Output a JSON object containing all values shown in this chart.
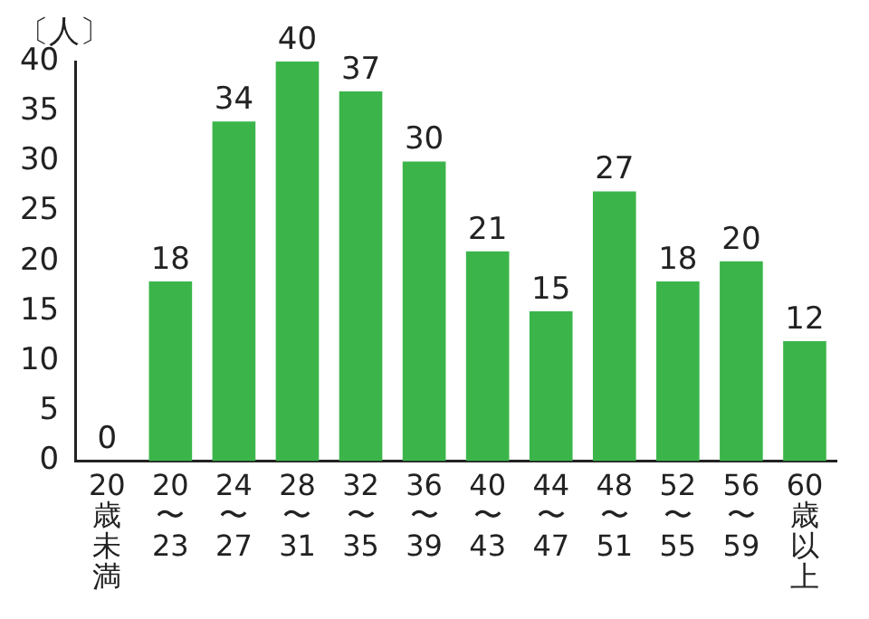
{
  "chart_data": {
    "type": "bar",
    "ylabel": "〔人〕",
    "categories": [
      "20歳未満",
      "20〜23",
      "24〜27",
      "28〜31",
      "32〜35",
      "36〜39",
      "40〜43",
      "44〜47",
      "48〜51",
      "52〜55",
      "56〜59",
      "60歳以上"
    ],
    "values": [
      0,
      18,
      34,
      40,
      37,
      30,
      21,
      15,
      27,
      18,
      20,
      12
    ],
    "color": "#3bb54a",
    "ylim": [
      0,
      40
    ],
    "yticks": [
      0,
      5,
      10,
      15,
      20,
      25,
      30,
      35,
      40
    ],
    "grid": false,
    "legend": false,
    "data_labels": true
  }
}
